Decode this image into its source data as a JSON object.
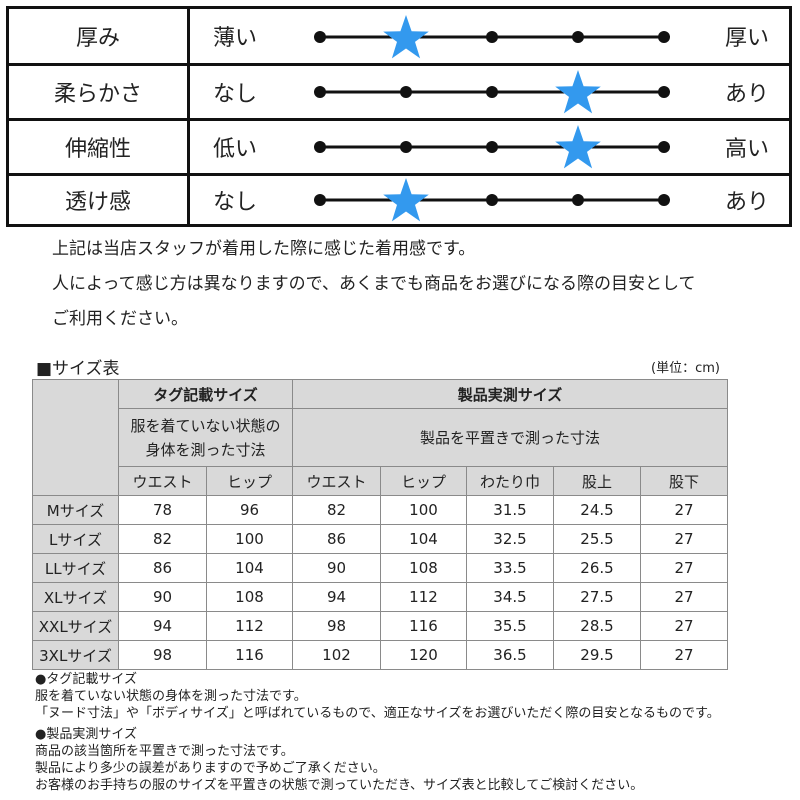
{
  "rating": {
    "scale_points": 5,
    "star_color": "#3399ee",
    "rows": [
      {
        "label": "厚み",
        "low": "薄い",
        "high": "厚い",
        "value": 2
      },
      {
        "label": "柔らかさ",
        "low": "なし",
        "high": "あり",
        "value": 4
      },
      {
        "label": "伸縮性",
        "low": "低い",
        "high": "高い",
        "value": 4
      },
      {
        "label": "透け感",
        "low": "なし",
        "high": "あり",
        "value": 2
      }
    ]
  },
  "note": {
    "lines": [
      "上記は当店スタッフが着用した際に感じた着用感です。",
      "人によって感じ方は異なりますので、あくまでも商品をお選びになる際の目安として",
      "ご利用ください。"
    ]
  },
  "size_table": {
    "title": "■サイズ表",
    "unit": "(単位：cm)",
    "groups": [
      {
        "label": "タグ記載サイズ",
        "desc_line1": "服を着ていない状態の",
        "desc_line2": "身体を測った寸法"
      },
      {
        "label": "製品実測サイズ",
        "desc": "製品を平置きで測った寸法"
      }
    ],
    "columns": [
      "ウエスト",
      "ヒップ",
      "ウエスト",
      "ヒップ",
      "わたり巾",
      "股上",
      "股下"
    ],
    "rows": [
      {
        "size": "Mサイズ",
        "values": [
          "78",
          "96",
          "82",
          "100",
          "31.5",
          "24.5",
          "27"
        ]
      },
      {
        "size": "Lサイズ",
        "values": [
          "82",
          "100",
          "86",
          "104",
          "32.5",
          "25.5",
          "27"
        ]
      },
      {
        "size": "LLサイズ",
        "values": [
          "86",
          "104",
          "90",
          "108",
          "33.5",
          "26.5",
          "27"
        ]
      },
      {
        "size": "XLサイズ",
        "values": [
          "90",
          "108",
          "94",
          "112",
          "34.5",
          "27.5",
          "27"
        ]
      },
      {
        "size": "XXLサイズ",
        "values": [
          "94",
          "112",
          "98",
          "116",
          "35.5",
          "28.5",
          "27"
        ]
      },
      {
        "size": "3XLサイズ",
        "values": [
          "98",
          "116",
          "102",
          "120",
          "36.5",
          "29.5",
          "27"
        ]
      }
    ]
  },
  "footnotes": {
    "tag_heading": "●タグ記載サイズ",
    "tag_lines": [
      "服を着ていない状態の身体を測った寸法です。",
      "「ヌード寸法」や「ボディサイズ」と呼ばれているもので、適正なサイズをお選びいただく際の目安となるものです。"
    ],
    "product_heading": "●製品実測サイズ",
    "product_lines": [
      "商品の該当箇所を平置きで測った寸法です。",
      "製品により多少の誤差がありますので予めご了承ください。",
      "お客様のお手持ちの服のサイズを平置きの状態で測っていただき、サイズ表と比較してご検討ください。"
    ]
  }
}
